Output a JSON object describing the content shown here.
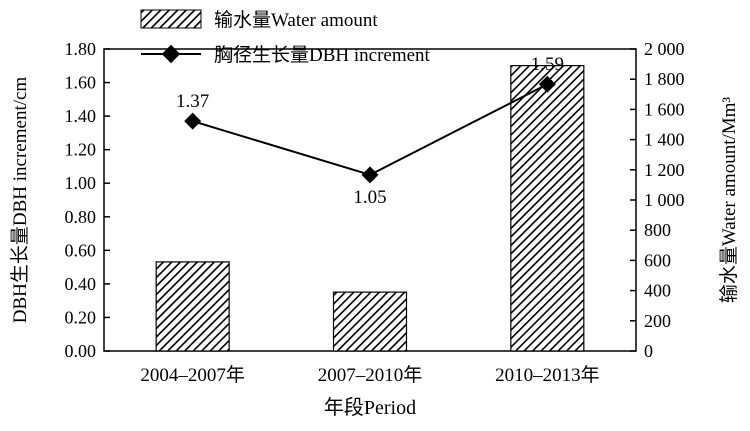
{
  "chart_data": {
    "type": "bar+line",
    "categories": [
      "2004–2007年",
      "2007–2010年",
      "2010–2013年"
    ],
    "bar_series": {
      "name": "输水量Water amount",
      "axis": "right",
      "values": [
        590,
        390,
        1890
      ]
    },
    "line_series": {
      "name": "胸径生长量DBH increment",
      "axis": "left",
      "values": [
        1.37,
        1.05,
        1.59
      ],
      "labels": [
        "1.37",
        "1.05",
        "1.59"
      ]
    },
    "xlabel": "年段Period",
    "ylabel_left": "DBH生长量DBH increment/cm",
    "ylabel_right": "输水量Water amount/Mm³",
    "ylim_left": [
      0,
      1.8
    ],
    "ylim_right": [
      0,
      2000
    ],
    "yticks_left": [
      "0.00",
      "0.20",
      "0.40",
      "0.60",
      "0.80",
      "1.00",
      "1.20",
      "1.40",
      "1.60",
      "1.80"
    ],
    "yticks_right": [
      "0",
      "200",
      "400",
      "600",
      "800",
      "1 000",
      "1 200",
      "1 400",
      "1 600",
      "1 800",
      "2 000"
    ],
    "legend_position": "top-left",
    "bar_pattern": "diagonal-hatch",
    "colors": {
      "bar_fill": "#000000",
      "line": "#000000",
      "marker": "#000000"
    }
  }
}
